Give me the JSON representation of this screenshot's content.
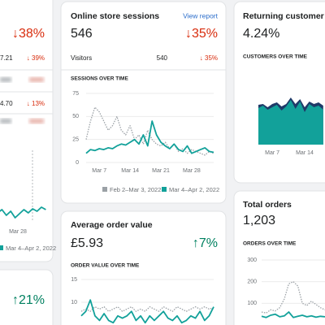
{
  "cards": [
    {
      "headline_change": "↓38%",
      "rows": [
        {
          "value": "7.21",
          "change": "↓ 39%"
        },
        {
          "value": "4.70",
          "change": "↓ 13%"
        }
      ],
      "chart": {
        "type": "line",
        "x_labels": [
          "Mar 28"
        ],
        "series": [
          {
            "name": "Mar 4–Apr 2, 2022",
            "color": "#12a19a",
            "values": [
              6.5,
              8.5,
              5,
              7.5,
              3.5,
              6,
              8.5,
              6.5,
              9,
              7.5,
              10,
              8.5
            ]
          }
        ]
      }
    },
    {
      "title": "Online store sessions",
      "link": "View report",
      "value": "546",
      "change": "↓35%",
      "rows": [
        {
          "label": "Visitors",
          "value": "540",
          "change": "↓ 35%"
        }
      ],
      "chart": {
        "type": "line",
        "title": "SESSIONS OVER TIME",
        "ylim": [
          0,
          75
        ],
        "yticks": [
          0,
          25,
          50,
          75
        ],
        "grid": true,
        "x_labels": [
          "Mar 7",
          "Mar 14",
          "Mar 21",
          "Mar 28"
        ],
        "series": [
          {
            "name": "Feb 2–Mar 3, 2022",
            "color": "#9ba1a6",
            "style": "dotted",
            "values": [
              25,
              45,
              60,
              55,
              45,
              35,
              40,
              50,
              35,
              30,
              40,
              25,
              30,
              20,
              35,
              25,
              20,
              18,
              22,
              15,
              20,
              12,
              15,
              10,
              14,
              12,
              10,
              8,
              12,
              10
            ]
          },
          {
            "name": "Mar 4–Apr 2, 2022",
            "color": "#12a19a",
            "style": "solid",
            "values": [
              10,
              14,
              13,
              15,
              14,
              16,
              15,
              18,
              20,
              19,
              22,
              25,
              20,
              30,
              18,
              45,
              30,
              22,
              18,
              15,
              20,
              14,
              12,
              18,
              10,
              12,
              14,
              16,
              12,
              11
            ]
          }
        ]
      }
    },
    {
      "change": "↑21%"
    },
    {
      "title": "Average order value",
      "value": "£5.93",
      "change": "↑7%",
      "chart": {
        "type": "line",
        "title": "ORDER VALUE OVER TIME",
        "ylim": [
          5,
          15
        ],
        "yticks": [
          10,
          15
        ],
        "grid": true,
        "series": [
          {
            "color": "#9ba1a6",
            "style": "dotted",
            "values": [
              8,
              8.5,
              8,
              9,
              8.5,
              9,
              8,
              8.5,
              9,
              8,
              8.5,
              9,
              8,
              8.5,
              8,
              9,
              8.5,
              8,
              9,
              8.5,
              8,
              9,
              8.5,
              8,
              8.5,
              9,
              8.5,
              9,
              8.5,
              8.8
            ]
          },
          {
            "color": "#12a19a",
            "style": "solid",
            "values": [
              7,
              8,
              10.5,
              7,
              6,
              7.5,
              6,
              5.5,
              7,
              6.5,
              7,
              8,
              6,
              7,
              5.5,
              7,
              6,
              7,
              8,
              6.5,
              6,
              7,
              5.5,
              6,
              7,
              6.5,
              8,
              6,
              7,
              9
            ]
          }
        ]
      }
    },
    {
      "title": "Returning customer rate",
      "value": "4.24%",
      "chart": {
        "type": "area",
        "title": "CUSTOMERS OVER TIME",
        "x_labels": [
          "Mar 7",
          "Mar 14"
        ],
        "series": [
          {
            "color": "#1f3a68",
            "values": [
              4.9,
              5.0,
              4.6,
              5.0,
              5.2,
              4.7,
              5.0,
              5.8,
              5.0,
              5.6,
              4.6,
              5.3,
              5.0,
              5.2,
              4.8
            ]
          },
          {
            "color": "#12a19a",
            "values": [
              4.5,
              4.8,
              4.3,
              4.6,
              4.9,
              4.2,
              4.7,
              5.5,
              4.4,
              5.3,
              4.0,
              5.0,
              4.6,
              4.8,
              4.3
            ]
          }
        ]
      }
    },
    {
      "title": "Total orders",
      "value": "1,203",
      "chart": {
        "type": "line",
        "title": "ORDERS OVER TIME",
        "ylim": [
          0,
          300
        ],
        "yticks": [
          100,
          200,
          300
        ],
        "grid": true,
        "series": [
          {
            "color": "#9ba1a6",
            "style": "dotted",
            "values": [
              60,
              55,
              70,
              65,
              80,
              120,
              190,
              200,
              180,
              100,
              90,
              110,
              95,
              80,
              70
            ]
          },
          {
            "color": "#12a19a",
            "style": "solid",
            "values": [
              40,
              35,
              45,
              50,
              38,
              42,
              60,
              35,
              40,
              45,
              38,
              42,
              36,
              40,
              38
            ]
          }
        ]
      }
    }
  ]
}
